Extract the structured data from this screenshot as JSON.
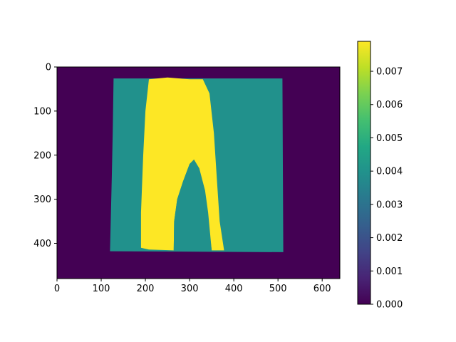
{
  "chart_data": {
    "type": "heatmap",
    "colormap": "viridis",
    "colors": {
      "background": "#440154",
      "mid": "#21918c",
      "high": "#fde725"
    },
    "image_extent": {
      "x": [
        0,
        640
      ],
      "y": [
        480,
        0
      ]
    },
    "x_ticks": [
      0,
      100,
      200,
      300,
      400,
      500,
      600
    ],
    "y_ticks": [
      0,
      100,
      200,
      300,
      400
    ],
    "colorbar": {
      "range": [
        0,
        0.0079
      ],
      "ticks": [
        0.0,
        0.001,
        0.002,
        0.003,
        0.004,
        0.005,
        0.006,
        0.007
      ],
      "tick_labels": [
        "0.000",
        "0.001",
        "0.002",
        "0.003",
        "0.004",
        "0.005",
        "0.006",
        "0.007"
      ]
    },
    "regions": [
      {
        "name": "background",
        "value": 0.0,
        "color": "#440154",
        "polygon": [
          [
            0,
            0
          ],
          [
            640,
            0
          ],
          [
            640,
            480
          ],
          [
            0,
            480
          ]
        ]
      },
      {
        "name": "outer-garment-region",
        "value": 0.0042,
        "color": "#21918c",
        "polygon": [
          [
            128,
            26
          ],
          [
            510,
            26
          ],
          [
            512,
            420
          ],
          [
            120,
            418
          ],
          [
            122,
            330
          ],
          [
            124,
            250
          ],
          [
            126,
            150
          ]
        ]
      },
      {
        "name": "inner-garment-region",
        "value": 0.0079,
        "color": "#fde725",
        "polygon": [
          [
            208,
            28
          ],
          [
            250,
            24
          ],
          [
            300,
            28
          ],
          [
            330,
            28
          ],
          [
            345,
            60
          ],
          [
            355,
            150
          ],
          [
            362,
            260
          ],
          [
            368,
            350
          ],
          [
            378,
            416
          ],
          [
            350,
            416
          ],
          [
            340,
            330
          ],
          [
            320,
            250
          ],
          [
            310,
            210
          ],
          [
            300,
            220
          ],
          [
            285,
            260
          ],
          [
            272,
            300
          ],
          [
            265,
            350
          ],
          [
            264,
            416
          ],
          [
            208,
            414
          ],
          [
            190,
            410
          ],
          [
            190,
            330
          ],
          [
            195,
            200
          ],
          [
            200,
            100
          ]
        ]
      },
      {
        "name": "crotch-gap-region",
        "value": 0.0042,
        "color": "#21918c",
        "polygon": [
          [
            310,
            210
          ],
          [
            322,
            230
          ],
          [
            335,
            280
          ],
          [
            342,
            330
          ],
          [
            350,
            416
          ],
          [
            264,
            416
          ],
          [
            265,
            350
          ],
          [
            272,
            300
          ],
          [
            285,
            260
          ],
          [
            300,
            220
          ]
        ]
      }
    ]
  }
}
